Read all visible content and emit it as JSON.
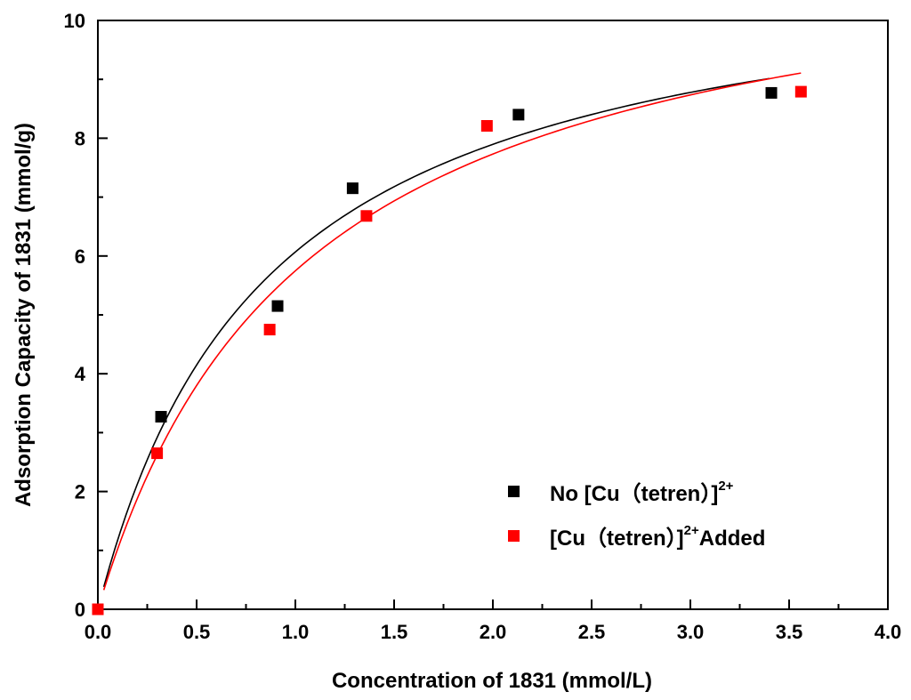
{
  "chart_data": {
    "type": "scatter",
    "title": "",
    "xlabel": "Concentration of 1831 (mmol/L)",
    "ylabel": "Adsorption Capacity of 1831 (mmol/g)",
    "xlim": [
      0,
      4.0
    ],
    "ylim": [
      0,
      10
    ],
    "xticks": [
      "0.0",
      "0.5",
      "1.0",
      "1.5",
      "2.0",
      "2.5",
      "3.0",
      "3.5",
      "4.0"
    ],
    "yticks": [
      "0",
      "2",
      "4",
      "6",
      "8",
      "10"
    ],
    "grid": false,
    "legend_position": "lower-right",
    "series": [
      {
        "key": "no_complex",
        "legend_main": "No [Cu（tetren）]",
        "legend_sup": "2+",
        "legend_after": "",
        "color": "#000000",
        "points": [
          [
            0.0,
            0.0
          ],
          [
            0.32,
            3.27
          ],
          [
            0.91,
            5.15
          ],
          [
            1.29,
            7.15
          ],
          [
            2.13,
            8.4
          ],
          [
            3.41,
            8.77
          ]
        ],
        "fit": {
          "qmax": 11.3,
          "k": 1.16,
          "x_start": 0.03,
          "x_end": 3.4
        }
      },
      {
        "key": "complex_added",
        "legend_main": "[Cu（tetren）]",
        "legend_sup": "2+",
        "legend_after": "Added",
        "color": "#ff0000",
        "points": [
          [
            0.0,
            0.0
          ],
          [
            0.3,
            2.65
          ],
          [
            0.87,
            4.75
          ],
          [
            1.36,
            6.68
          ],
          [
            1.97,
            8.21
          ],
          [
            3.56,
            8.79
          ]
        ],
        "fit": {
          "qmax": 11.8,
          "k": 0.95,
          "x_start": 0.03,
          "x_end": 3.56
        }
      }
    ]
  }
}
